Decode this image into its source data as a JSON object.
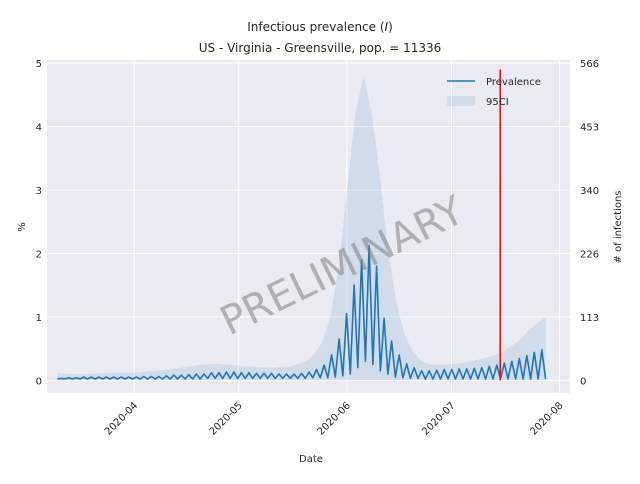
{
  "chart_data": {
    "type": "line",
    "title": "Infectious prevalence",
    "title_symbol": "I",
    "subtitle": "US - Virginia - Greensville, pop. = 11336",
    "xlabel": "Date",
    "ylabel": "%",
    "ylabel_right": "# of infections",
    "x_ticks": [
      "2020-04",
      "2020-05",
      "2020-06",
      "2020-07",
      "2020-08"
    ],
    "y_ticks": [
      "0",
      "1",
      "2",
      "3",
      "4",
      "5"
    ],
    "y_ticks_right": [
      "0",
      "113",
      "226",
      "340",
      "453",
      "566"
    ],
    "xlim": [
      "2020-03-07",
      "2020-08-04"
    ],
    "ylim": [
      -0.2,
      5.05
    ],
    "grid": true,
    "legend_position": "top-right",
    "series": [
      {
        "name": "Prevalence",
        "color": "#1f77b4",
        "x_start": "2020-03-10",
        "x_end": "2020-07-28",
        "values": [
          0.02,
          0.03,
          0.02,
          0.04,
          0.02,
          0.04,
          0.02,
          0.05,
          0.02,
          0.05,
          0.02,
          0.05,
          0.02,
          0.05,
          0.02,
          0.05,
          0.02,
          0.05,
          0.02,
          0.05,
          0.02,
          0.05,
          0.02,
          0.06,
          0.02,
          0.06,
          0.02,
          0.06,
          0.02,
          0.07,
          0.02,
          0.08,
          0.02,
          0.08,
          0.02,
          0.09,
          0.02,
          0.1,
          0.02,
          0.1,
          0.03,
          0.12,
          0.03,
          0.12,
          0.03,
          0.13,
          0.03,
          0.13,
          0.03,
          0.12,
          0.03,
          0.12,
          0.03,
          0.11,
          0.03,
          0.11,
          0.03,
          0.11,
          0.03,
          0.1,
          0.03,
          0.1,
          0.03,
          0.1,
          0.03,
          0.11,
          0.03,
          0.13,
          0.04,
          0.17,
          0.04,
          0.24,
          0.04,
          0.4,
          0.05,
          0.65,
          0.07,
          1.05,
          0.1,
          1.5,
          0.2,
          1.9,
          0.3,
          2.12,
          0.25,
          1.8,
          0.15,
          0.98,
          0.1,
          0.62,
          0.05,
          0.4,
          0.04,
          0.26,
          0.03,
          0.2,
          0.03,
          0.15,
          0.02,
          0.15,
          0.02,
          0.16,
          0.02,
          0.17,
          0.02,
          0.17,
          0.02,
          0.18,
          0.02,
          0.18,
          0.02,
          0.19,
          0.02,
          0.2,
          0.02,
          0.22,
          0.02,
          0.24,
          0.02,
          0.27,
          0.02,
          0.3,
          0.02,
          0.34,
          0.02,
          0.39,
          0.02,
          0.44,
          0.02,
          0.48,
          0.02
        ]
      },
      {
        "name": "95CI",
        "color": "#1f77b4",
        "lower": 0.0,
        "upper_values": [
          0.12,
          0.1,
          0.1,
          0.1,
          0.1,
          0.11,
          0.11,
          0.12,
          0.12,
          0.12,
          0.13,
          0.14,
          0.15,
          0.16,
          0.18,
          0.2,
          0.22,
          0.24,
          0.25,
          0.26,
          0.25,
          0.24,
          0.23,
          0.22,
          0.21,
          0.2,
          0.2,
          0.21,
          0.22,
          0.25,
          0.3,
          0.4,
          0.6,
          1.0,
          1.8,
          3.0,
          4.2,
          4.8,
          4.2,
          3.2,
          2.0,
          1.2,
          0.7,
          0.45,
          0.3,
          0.25,
          0.25,
          0.25,
          0.26,
          0.28,
          0.3,
          0.33,
          0.36,
          0.4,
          0.46,
          0.55,
          0.65,
          0.8,
          0.9,
          1.0
        ]
      }
    ],
    "annotations": [
      {
        "type": "vline",
        "x": "2020-07-15",
        "color": "#ff0000",
        "y_top": 4.9
      }
    ]
  },
  "watermark": "PRELIMINARY"
}
